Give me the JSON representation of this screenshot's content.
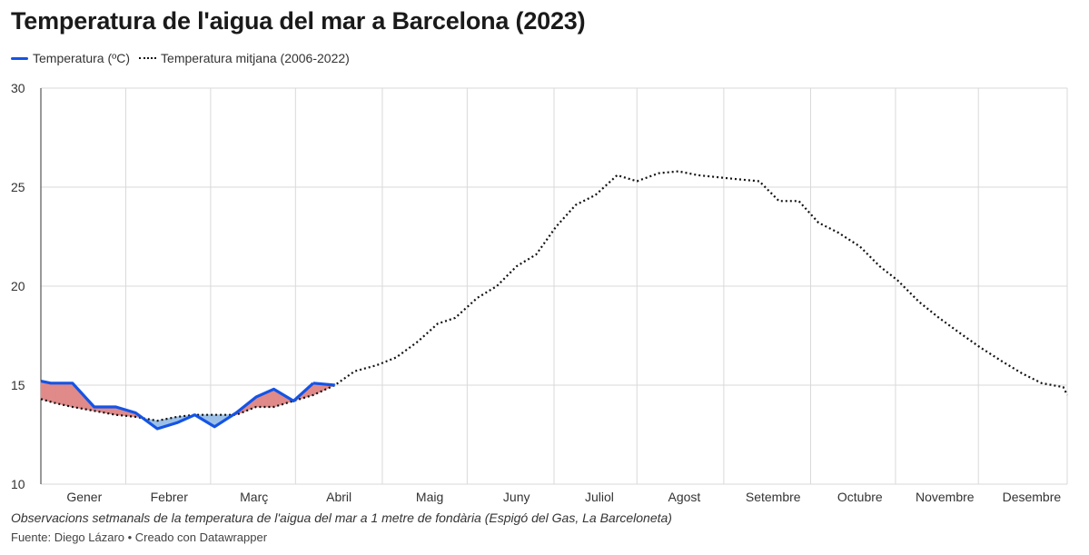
{
  "title": "Temperatura de l'aigua del mar a Barcelona (2023)",
  "legend": {
    "series_2023": "Temperatura (ºC)",
    "series_avg": "Temperatura mitjana (2006-2022)"
  },
  "note": "Observacions setmanals de la temperatura de l'aigua del mar a 1 metre de fondària (Espigó del Gas, La Barceloneta)",
  "source": "Fuente: Diego Lázaro • Creado con Datawrapper",
  "colors": {
    "line_2023": "#1454e6",
    "line_avg": "#111111",
    "above_fill": "#e08a8a",
    "below_fill": "#9cc1e8",
    "grid": "#d9d9d9"
  },
  "chart_data": {
    "type": "line",
    "title": "Temperatura de l'aigua del mar a Barcelona (2023)",
    "xlabel": "",
    "ylabel": "",
    "x_unit": "week",
    "xlim": [
      1,
      53
    ],
    "ylim": [
      10,
      30
    ],
    "yticks": [
      10,
      15,
      20,
      25,
      30
    ],
    "month_labels": [
      "Gener",
      "Febrer",
      "Març",
      "Abril",
      "Maig",
      "Juny",
      "Juliol",
      "Agost",
      "Setembre",
      "Octubre",
      "Novembre",
      "Desembre"
    ],
    "month_label_week": [
      3.2,
      7.5,
      11.8,
      16.1,
      20.7,
      25.1,
      29.3,
      33.6,
      38.1,
      42.5,
      46.8,
      51.2
    ],
    "month_gridline_week": [
      5.3,
      9.6,
      13.9,
      18.3,
      22.6,
      27.0,
      31.2,
      35.6,
      40.0,
      44.3,
      48.5
    ],
    "grid": true,
    "legend_position": "top-left",
    "series": [
      {
        "name": "Temperatura (ºC)",
        "style": "solid",
        "x": [
          1,
          1.5,
          2.6,
          3.7,
          4.8,
          5.8,
          6.9,
          7.9,
          8.8,
          9.8,
          10.9,
          11.9,
          12.8,
          13.8,
          14.8
        ],
        "values": [
          15.2,
          15.1,
          15.1,
          13.9,
          13.9,
          13.6,
          12.8,
          13.1,
          13.5,
          12.9,
          13.6,
          14.4,
          14.8,
          14.2,
          15.1
        ]
      },
      {
        "name": "Temperatura (ºC) - tail",
        "style": "solid",
        "x": [
          14.8,
          15.9
        ],
        "values": [
          15.1,
          15.0
        ]
      },
      {
        "name": "Temperatura mitjana (2006-2022)",
        "style": "dotted",
        "x": [
          1,
          1.7,
          2.6,
          3.7,
          4.8,
          5.8,
          6.9,
          7.9,
          8.8,
          9.8,
          10.9,
          11.9,
          12.8,
          13.8,
          14.8,
          15.9,
          16.9,
          18.0,
          19.0,
          20.1,
          21.1,
          22.0,
          23.1,
          24.1,
          25.1,
          26.1,
          27.1,
          28.1,
          29.1,
          30.2,
          31.2,
          32.3,
          33.3,
          34.3,
          35.3,
          36.3,
          37.4,
          38.4,
          39.4,
          40.4,
          41.4,
          42.5,
          43.5,
          44.4,
          45.5,
          46.5,
          47.6,
          48.6,
          49.7,
          50.7,
          51.7,
          52.8,
          53
        ],
        "values": [
          14.3,
          14.1,
          13.9,
          13.7,
          13.5,
          13.4,
          13.2,
          13.4,
          13.5,
          13.5,
          13.5,
          13.9,
          13.9,
          14.2,
          14.5,
          15.0,
          15.7,
          16.0,
          16.4,
          17.2,
          18.1,
          18.4,
          19.4,
          20.0,
          21.0,
          21.6,
          23.0,
          24.1,
          24.6,
          25.6,
          25.3,
          25.7,
          25.8,
          25.6,
          25.5,
          25.4,
          25.3,
          24.3,
          24.3,
          23.2,
          22.7,
          22.0,
          21.0,
          20.3,
          19.2,
          18.4,
          17.6,
          16.9,
          16.2,
          15.6,
          15.1,
          14.9,
          14.5
        ]
      }
    ]
  }
}
